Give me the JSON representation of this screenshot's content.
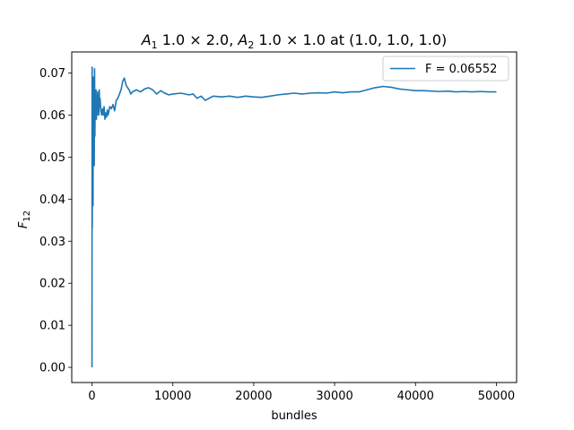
{
  "chart_data": {
    "type": "line",
    "title_parts": {
      "a1": "A",
      "a1_sub": "1",
      "a1_rest": " 1.0 × 2.0, ",
      "a2": "A",
      "a2_sub": "2",
      "a2_rest": " 1.0 × 1.0 at (1.0, 1.0, 1.0)"
    },
    "xlabel": "bundles",
    "ylabel_main": "F",
    "ylabel_sub": "12",
    "xlim": [
      -2500,
      52500
    ],
    "ylim": [
      -0.0036,
      0.075
    ],
    "xticks": [
      0,
      10000,
      20000,
      30000,
      40000,
      50000
    ],
    "xtick_labels": [
      "0",
      "10000",
      "20000",
      "30000",
      "40000",
      "50000"
    ],
    "yticks": [
      0.0,
      0.01,
      0.02,
      0.03,
      0.04,
      0.05,
      0.06,
      0.07
    ],
    "ytick_labels": [
      "0.00",
      "0.01",
      "0.02",
      "0.03",
      "0.04",
      "0.05",
      "0.06",
      "0.07"
    ],
    "grid": false,
    "legend_position": "top-right",
    "series": [
      {
        "name": "F = 0.06552",
        "color": "#1f77b4",
        "x": [
          0,
          20,
          40,
          60,
          80,
          100,
          130,
          160,
          200,
          240,
          280,
          320,
          360,
          400,
          450,
          500,
          550,
          600,
          650,
          700,
          750,
          800,
          850,
          900,
          950,
          1000,
          1100,
          1200,
          1300,
          1400,
          1500,
          1600,
          1700,
          1800,
          1900,
          2000,
          2200,
          2400,
          2600,
          2800,
          3000,
          3200,
          3400,
          3600,
          3800,
          4000,
          4200,
          4400,
          4600,
          4800,
          5000,
          5500,
          6000,
          6500,
          7000,
          7500,
          8000,
          8500,
          9000,
          9500,
          10000,
          11000,
          12000,
          12500,
          13000,
          13500,
          14000,
          14500,
          15000,
          16000,
          17000,
          18000,
          19000,
          20000,
          21000,
          22000,
          23000,
          24000,
          25000,
          26000,
          27000,
          28000,
          29000,
          30000,
          31000,
          32000,
          33000,
          34000,
          35000,
          36000,
          37000,
          38000,
          39000,
          40000,
          41000,
          42000,
          43000,
          44000,
          45000,
          46000,
          47000,
          48000,
          49000,
          50000
        ],
        "y": [
          0.0,
          0.0714,
          0.0333,
          0.069,
          0.04,
          0.06,
          0.0385,
          0.069,
          0.05,
          0.064,
          0.048,
          0.071,
          0.055,
          0.065,
          0.06,
          0.066,
          0.059,
          0.063,
          0.06,
          0.0655,
          0.061,
          0.064,
          0.06,
          0.066,
          0.062,
          0.064,
          0.061,
          0.06,
          0.0615,
          0.06,
          0.062,
          0.059,
          0.0605,
          0.0595,
          0.0612,
          0.06,
          0.062,
          0.0615,
          0.0625,
          0.061,
          0.0635,
          0.064,
          0.065,
          0.066,
          0.068,
          0.0688,
          0.0672,
          0.0665,
          0.066,
          0.065,
          0.0655,
          0.066,
          0.0655,
          0.0662,
          0.0665,
          0.066,
          0.065,
          0.0658,
          0.0652,
          0.0648,
          0.065,
          0.0652,
          0.0648,
          0.065,
          0.064,
          0.0645,
          0.0635,
          0.064,
          0.0645,
          0.0643,
          0.0645,
          0.0642,
          0.0645,
          0.0643,
          0.0642,
          0.0645,
          0.0648,
          0.065,
          0.0652,
          0.065,
          0.0652,
          0.0653,
          0.0652,
          0.0655,
          0.0653,
          0.0655,
          0.0655,
          0.066,
          0.0665,
          0.0668,
          0.0666,
          0.0662,
          0.066,
          0.0658,
          0.0658,
          0.0657,
          0.0656,
          0.0657,
          0.0655,
          0.0656,
          0.0655,
          0.0656,
          0.0655,
          0.0655
        ]
      }
    ]
  }
}
